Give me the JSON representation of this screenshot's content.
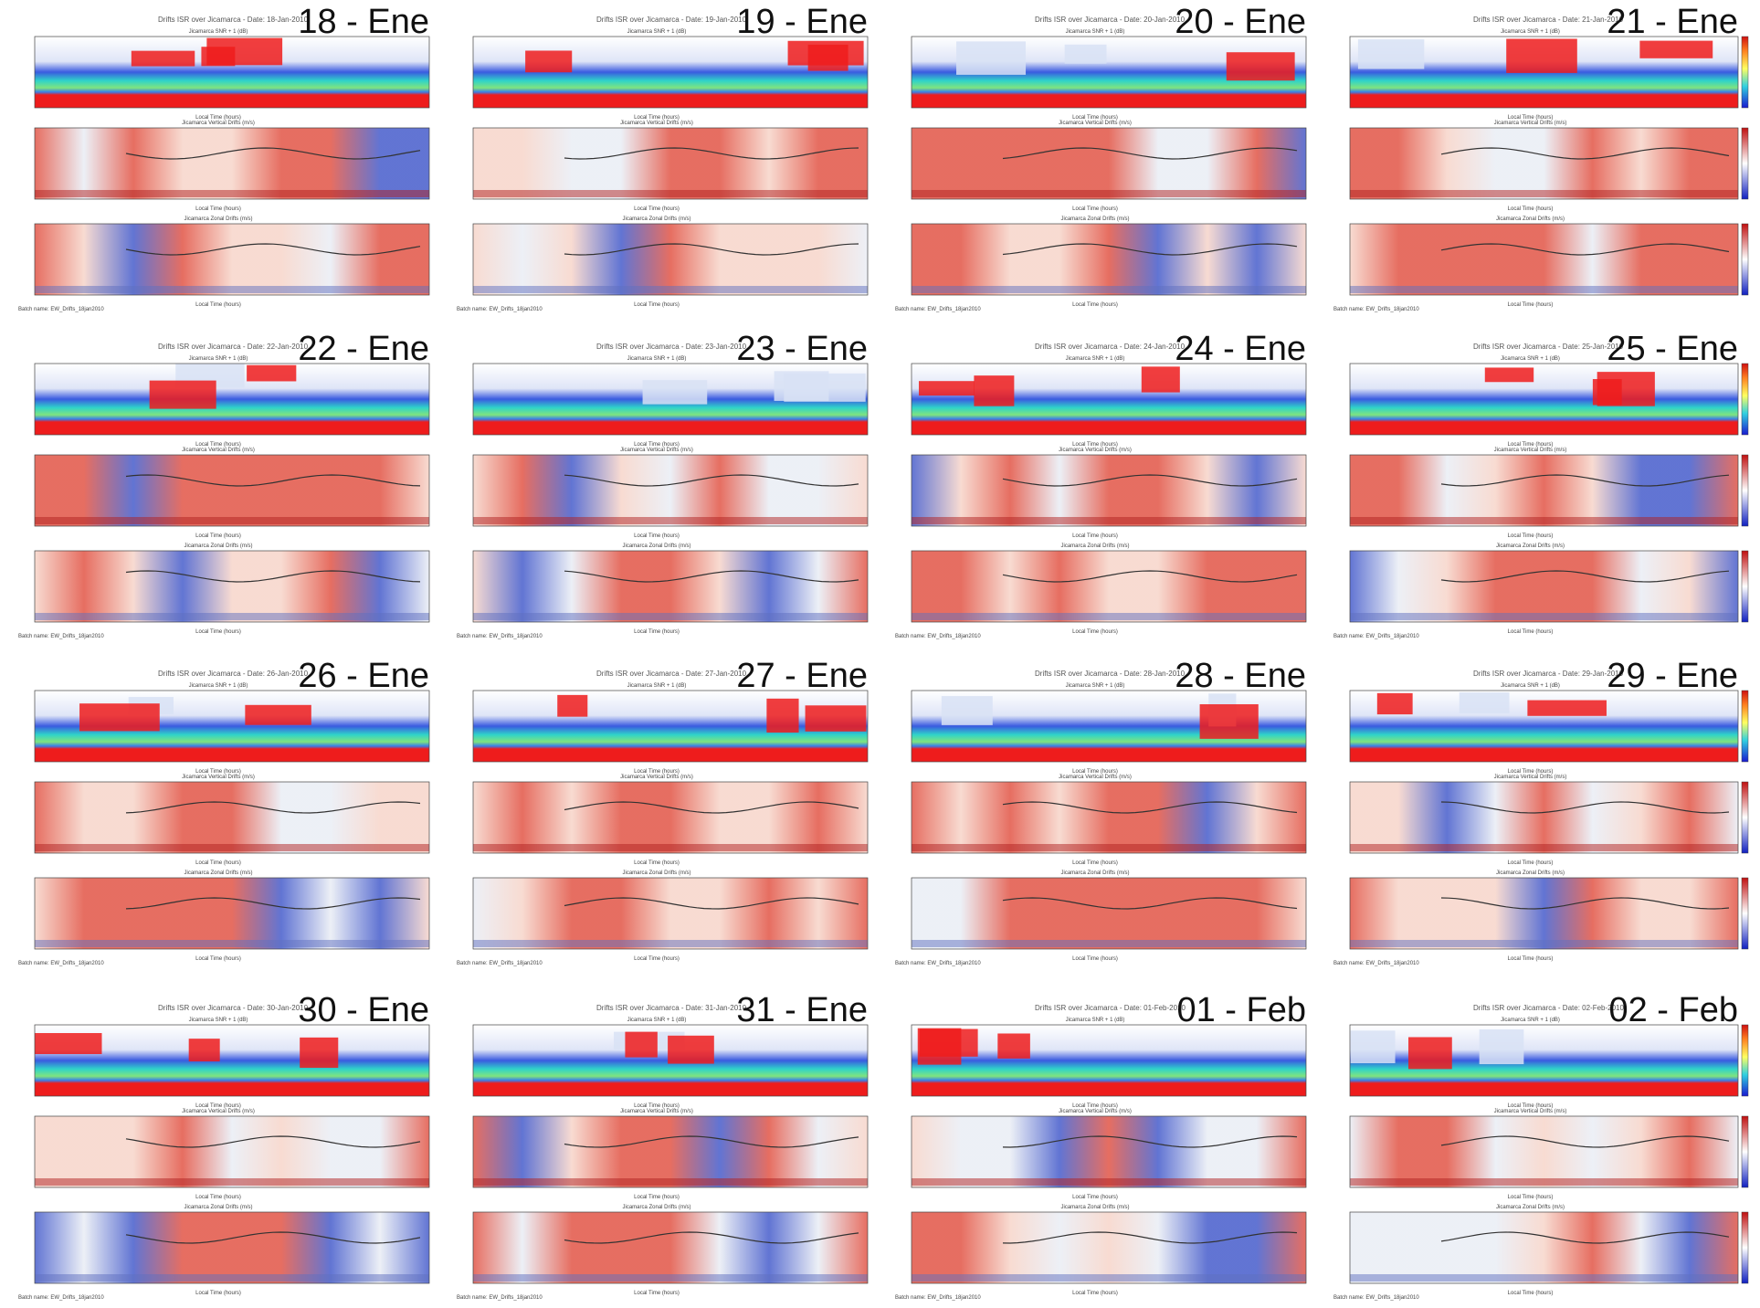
{
  "panels": [
    {
      "label": "18 - Ene",
      "title": "Drifts ISR over Jicamarca - Date: 18-Jan-2010"
    },
    {
      "label": "19 - Ene",
      "title": "Drifts ISR over Jicamarca - Date: 19-Jan-2010"
    },
    {
      "label": "20 - Ene",
      "title": "Drifts ISR over Jicamarca - Date: 20-Jan-2010"
    },
    {
      "label": "21 - Ene",
      "title": "Drifts ISR over Jicamarca - Date: 21-Jan-2010"
    },
    {
      "label": "22 - Ene",
      "title": "Drifts ISR over Jicamarca - Date: 22-Jan-2010"
    },
    {
      "label": "23 - Ene",
      "title": "Drifts ISR over Jicamarca - Date: 23-Jan-2010"
    },
    {
      "label": "24 - Ene",
      "title": "Drifts ISR over Jicamarca - Date: 24-Jan-2010"
    },
    {
      "label": "25 - Ene",
      "title": "Drifts ISR over Jicamarca - Date: 25-Jan-2010"
    },
    {
      "label": "26 - Ene",
      "title": "Drifts ISR over Jicamarca - Date: 26-Jan-2010"
    },
    {
      "label": "27 - Ene",
      "title": "Drifts ISR over Jicamarca - Date: 27-Jan-2010"
    },
    {
      "label": "28 - Ene",
      "title": "Drifts ISR over Jicamarca - Date: 28-Jan-2010"
    },
    {
      "label": "29 - Ene",
      "title": "Drifts ISR over Jicamarca - Date: 29-Jan-2010"
    },
    {
      "label": "30 - Ene",
      "title": "Drifts ISR over Jicamarca - Date: 30-Jan-2010"
    },
    {
      "label": "31 - Ene",
      "title": "Drifts ISR over Jicamarca - Date: 31-Jan-2010"
    },
    {
      "label": "01 - Feb",
      "title": "Drifts ISR over Jicamarca - Date: 01-Feb-2010"
    },
    {
      "label": "02 - Feb",
      "title": "Drifts ISR over Jicamarca - Date: 02-Feb-2010"
    }
  ],
  "subplot_titles": [
    "Jicamarca SNR + 1 (dB)",
    "Jicamarca Vertical Drifts (m/s)",
    "Jicamarca Zonal Drifts (m/s)"
  ],
  "x_label": "Local Time (hours)",
  "batch": "Batch name: EW_Drifts_18jan2010"
}
